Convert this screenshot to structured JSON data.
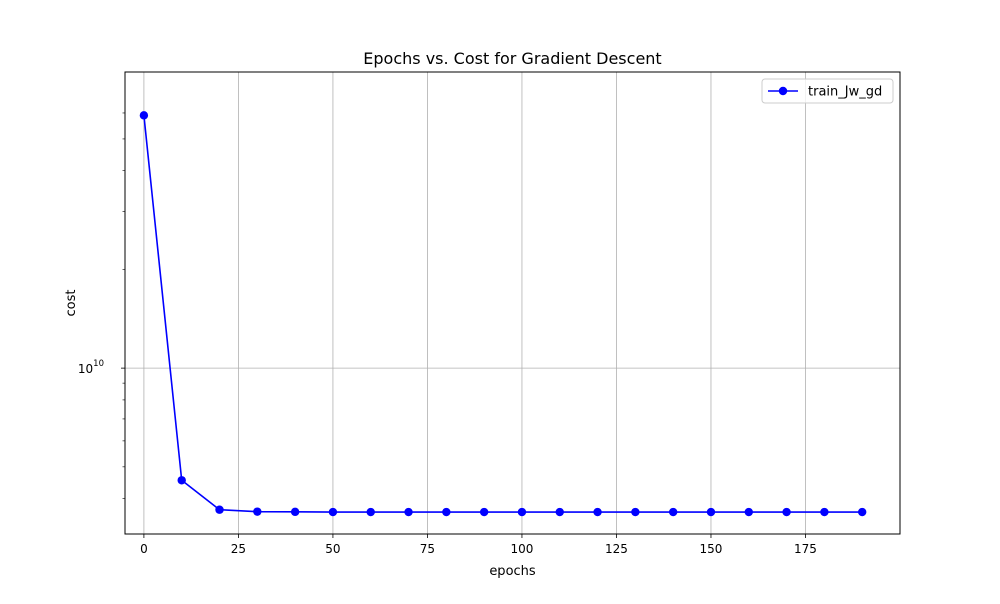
{
  "chart_data": {
    "type": "line",
    "title": "Epochs vs. Cost for Gradient Descent",
    "xlabel": "epochs",
    "ylabel": "cost",
    "xlim": [
      -5,
      200
    ],
    "ylim": [
      3120000000.0,
      80000000000.0
    ],
    "yscale": "log",
    "grid": true,
    "legend_position": "top-right",
    "x_ticks": [
      0,
      25,
      50,
      75,
      100,
      125,
      150,
      175
    ],
    "x_tick_labels": [
      "0",
      "25",
      "50",
      "75",
      "100",
      "125",
      "150",
      "175"
    ],
    "y_major_ticks": [
      10000000000.0
    ],
    "y_major_tick_base": "10",
    "y_major_tick_exp": "10",
    "y_minor_ticks": [
      4000000000.0,
      5000000000.0,
      6000000000.0,
      7000000000.0,
      8000000000.0,
      9000000000.0,
      20000000000.0,
      30000000000.0,
      40000000000.0,
      50000000000.0,
      60000000000.0
    ],
    "series": [
      {
        "name": "train_Jw_gd",
        "color": "#0000ff",
        "marker": "circle",
        "x": [
          0,
          10,
          20,
          30,
          40,
          50,
          60,
          70,
          80,
          90,
          100,
          110,
          120,
          130,
          140,
          150,
          160,
          170,
          180,
          190
        ],
        "y": [
          59000000000.0,
          4550000000.0,
          3700000000.0,
          3650000000.0,
          3645000000.0,
          3640000000.0,
          3640000000.0,
          3640000000.0,
          3640000000.0,
          3640000000.0,
          3640000000.0,
          3640000000.0,
          3640000000.0,
          3640000000.0,
          3640000000.0,
          3640000000.0,
          3640000000.0,
          3640000000.0,
          3640000000.0,
          3640000000.0
        ]
      }
    ]
  }
}
